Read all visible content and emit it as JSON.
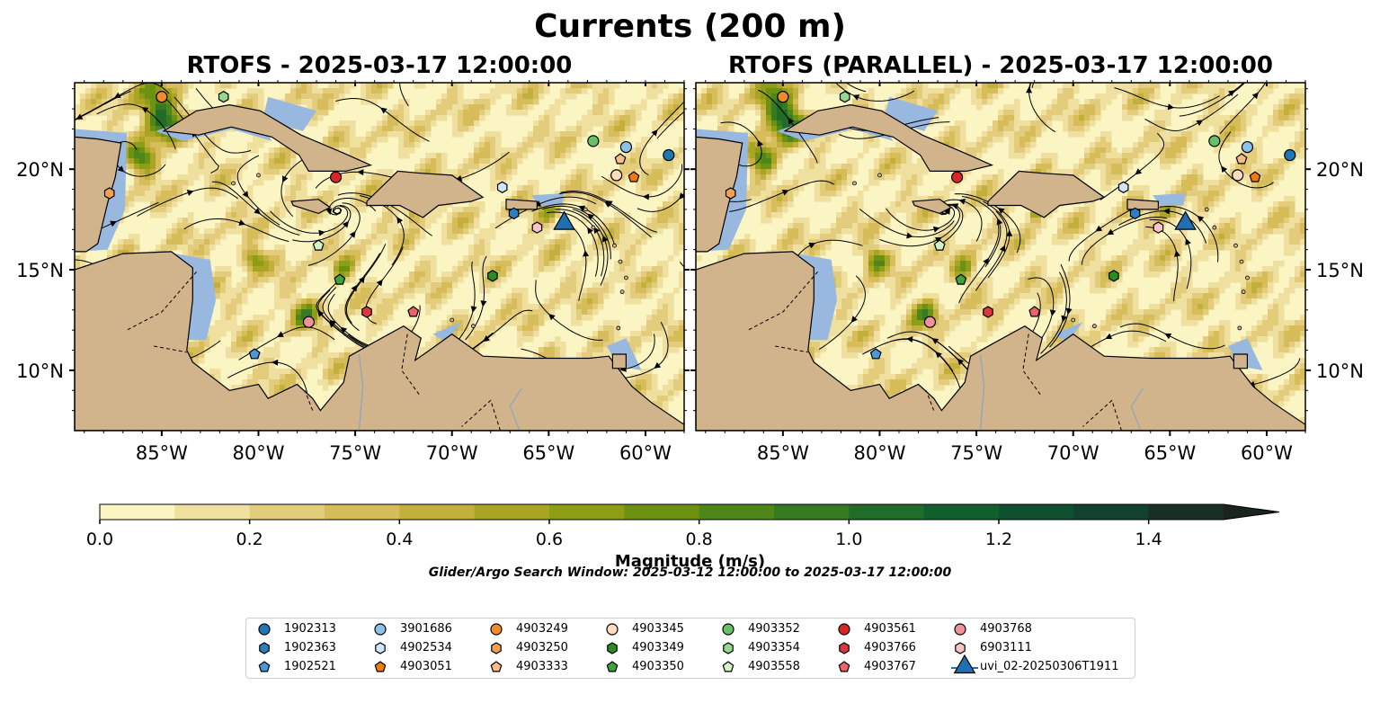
{
  "figure": {
    "suptitle": "Currents (200 m)",
    "window_note": "Glider/Argo Search Window: 2025-03-12 12:00:00 to 2025-03-17 12:00:00"
  },
  "colors": {
    "land": "#d2b48c",
    "shallow_water": "#99b8e0",
    "speed_scale": [
      "#faf5c2",
      "#efe0a0",
      "#e3cd7d",
      "#d6bd5a",
      "#c3af3c",
      "#a9a423",
      "#8d9d16",
      "#6d9212",
      "#4f8619",
      "#367a21",
      "#206c28",
      "#115f2d",
      "#0e5030",
      "#12412e",
      "#172f25",
      "#1a231d"
    ]
  },
  "chart_data": [
    {
      "type": "map",
      "title": "RTOFS - 2025-03-17 12:00:00",
      "lon_range": [
        -89.5,
        -58.0
      ],
      "lat_range": [
        7.0,
        24.3
      ],
      "xticks": [
        "85°W",
        "80°W",
        "75°W",
        "70°W",
        "65°W",
        "60°W"
      ],
      "yticks": [
        "20°N",
        "15°N",
        "10°N"
      ],
      "markers": [
        {
          "id": "1902313",
          "lon": -58.8,
          "lat": 20.7
        },
        {
          "id": "1902363",
          "lon": -66.8,
          "lat": 17.8
        },
        {
          "id": "1902521",
          "lon": -80.2,
          "lat": 10.8
        },
        {
          "id": "3901686",
          "lon": -61.0,
          "lat": 21.1
        },
        {
          "id": "4902534",
          "lon": -67.4,
          "lat": 19.1
        },
        {
          "id": "4903051",
          "lon": -60.6,
          "lat": 19.6
        },
        {
          "id": "4903249",
          "lon": -85.0,
          "lat": 23.6
        },
        {
          "id": "4903250",
          "lon": -87.7,
          "lat": 18.8
        },
        {
          "id": "4903333",
          "lon": -61.3,
          "lat": 20.5
        },
        {
          "id": "4903345",
          "lon": -61.5,
          "lat": 19.7
        },
        {
          "id": "4903349",
          "lon": -67.9,
          "lat": 14.7
        },
        {
          "id": "4903350",
          "lon": -75.8,
          "lat": 14.5
        },
        {
          "id": "4903352",
          "lon": -62.7,
          "lat": 21.4
        },
        {
          "id": "4903354",
          "lon": -81.8,
          "lat": 23.6
        },
        {
          "id": "4903558",
          "lon": -76.9,
          "lat": 16.2
        },
        {
          "id": "4903561",
          "lon": -76.0,
          "lat": 19.6
        },
        {
          "id": "4903766",
          "lon": -74.4,
          "lat": 12.9
        },
        {
          "id": "4903767",
          "lon": -72.0,
          "lat": 12.9
        },
        {
          "id": "4903768",
          "lon": -77.4,
          "lat": 12.4
        },
        {
          "id": "6903111",
          "lon": -65.6,
          "lat": 17.1
        },
        {
          "id": "uvi_02-20250306T1911",
          "lon": -64.2,
          "lat": 17.3
        }
      ]
    },
    {
      "type": "map",
      "title": "RTOFS (PARALLEL) - 2025-03-17 12:00:00",
      "lon_range": [
        -89.5,
        -58.0
      ],
      "lat_range": [
        7.0,
        24.3
      ],
      "xticks": [
        "85°W",
        "80°W",
        "75°W",
        "70°W",
        "65°W",
        "60°W"
      ],
      "yticks": [
        "20°N",
        "15°N",
        "10°N"
      ],
      "markers": [
        {
          "id": "1902313",
          "lon": -58.8,
          "lat": 20.7
        },
        {
          "id": "1902363",
          "lon": -66.8,
          "lat": 17.8
        },
        {
          "id": "1902521",
          "lon": -80.2,
          "lat": 10.8
        },
        {
          "id": "3901686",
          "lon": -61.0,
          "lat": 21.1
        },
        {
          "id": "4902534",
          "lon": -67.4,
          "lat": 19.1
        },
        {
          "id": "4903051",
          "lon": -60.6,
          "lat": 19.6
        },
        {
          "id": "4903249",
          "lon": -85.0,
          "lat": 23.6
        },
        {
          "id": "4903250",
          "lon": -87.7,
          "lat": 18.8
        },
        {
          "id": "4903333",
          "lon": -61.3,
          "lat": 20.5
        },
        {
          "id": "4903345",
          "lon": -61.5,
          "lat": 19.7
        },
        {
          "id": "4903349",
          "lon": -67.9,
          "lat": 14.7
        },
        {
          "id": "4903350",
          "lon": -75.8,
          "lat": 14.5
        },
        {
          "id": "4903352",
          "lon": -62.7,
          "lat": 21.4
        },
        {
          "id": "4903354",
          "lon": -81.8,
          "lat": 23.6
        },
        {
          "id": "4903558",
          "lon": -76.9,
          "lat": 16.2
        },
        {
          "id": "4903561",
          "lon": -76.0,
          "lat": 19.6
        },
        {
          "id": "4903766",
          "lon": -74.4,
          "lat": 12.9
        },
        {
          "id": "4903767",
          "lon": -72.0,
          "lat": 12.9
        },
        {
          "id": "4903768",
          "lon": -77.4,
          "lat": 12.4
        },
        {
          "id": "6903111",
          "lon": -65.6,
          "lat": 17.1
        },
        {
          "id": "uvi_02-20250306T1911",
          "lon": -64.2,
          "lat": 17.3
        }
      ]
    }
  ],
  "colorbar": {
    "label": "Magnitude (m/s)",
    "min": 0.0,
    "max": 1.5,
    "step": 0.1,
    "extend": "max",
    "ticks": [
      "0.0",
      "0.2",
      "0.4",
      "0.6",
      "0.8",
      "1.0",
      "1.2",
      "1.4"
    ]
  },
  "legend": {
    "items": [
      {
        "label": "1902313",
        "marker": "circle",
        "color": "#1f77b4"
      },
      {
        "label": "1902363",
        "marker": "hexagon",
        "color": "#2b7ec0"
      },
      {
        "label": "1902521",
        "marker": "pentagon",
        "color": "#4a98d6"
      },
      {
        "label": "3901686",
        "marker": "circle",
        "color": "#8cc2ea"
      },
      {
        "label": "4902534",
        "marker": "hexagon",
        "color": "#cfe6f8"
      },
      {
        "label": "4903051",
        "marker": "pentagon",
        "color": "#ef7a10"
      },
      {
        "label": "4903249",
        "marker": "circle",
        "color": "#f08a2a"
      },
      {
        "label": "4903250",
        "marker": "hexagon",
        "color": "#f3a053"
      },
      {
        "label": "4903333",
        "marker": "pentagon",
        "color": "#f7bd87"
      },
      {
        "label": "4903345",
        "marker": "circle",
        "color": "#fbdcbc"
      },
      {
        "label": "4903349",
        "marker": "hexagon",
        "color": "#2a8c22"
      },
      {
        "label": "4903350",
        "marker": "pentagon",
        "color": "#3ea33a"
      },
      {
        "label": "4903352",
        "marker": "circle",
        "color": "#68c168"
      },
      {
        "label": "4903354",
        "marker": "hexagon",
        "color": "#96d88e"
      },
      {
        "label": "4903558",
        "marker": "pentagon",
        "color": "#d2f3c8"
      },
      {
        "label": "4903561",
        "marker": "circle",
        "color": "#d62728"
      },
      {
        "label": "4903766",
        "marker": "hexagon",
        "color": "#d9393c"
      },
      {
        "label": "4903767",
        "marker": "pentagon",
        "color": "#e86468"
      },
      {
        "label": "4903768",
        "marker": "circle",
        "color": "#f0929a"
      },
      {
        "label": "6903111",
        "marker": "hexagon",
        "color": "#f8c4c8"
      },
      {
        "label": "uvi_02-20250306T1911",
        "marker": "triangle",
        "color": "#1f6fb2"
      }
    ]
  }
}
